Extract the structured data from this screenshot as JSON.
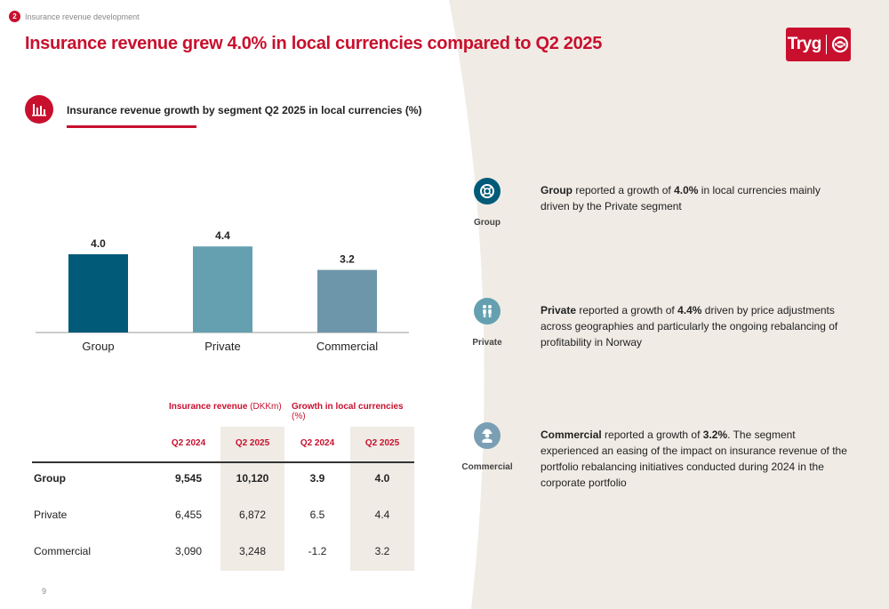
{
  "breadcrumb": {
    "number": "2",
    "text": "Insurance revenue development"
  },
  "title": "Insurance revenue grew 4.0% in local currencies compared to Q2 2025",
  "logo": {
    "text": "Tryg"
  },
  "chart_data": {
    "type": "bar",
    "title": "Insurance revenue growth by segment Q2 2025 in local currencies (%)",
    "categories": [
      "Group",
      "Private",
      "Commercial"
    ],
    "values": [
      4.0,
      4.4,
      3.2
    ],
    "value_labels": [
      "4.0",
      "4.4",
      "3.2"
    ],
    "colors": [
      "#005a78",
      "#64a0b0",
      "#6e96aa"
    ],
    "ylim": [
      0,
      6
    ],
    "xlabel": "",
    "ylabel": "",
    "grid": false
  },
  "table": {
    "group1": {
      "bold": "Insurance revenue",
      "light": " (DKKm)"
    },
    "group2": {
      "bold": "Growth in local currencies",
      "light": " (%)"
    },
    "columns": [
      "Q2 2024",
      "Q2 2025",
      "Q2 2024",
      "Q2 2025"
    ],
    "rows": [
      {
        "label": "Group",
        "values": [
          "9,545",
          "10,120",
          "3.9",
          "4.0"
        ]
      },
      {
        "label": "Private",
        "values": [
          "6,455",
          "6,872",
          "6.5",
          "4.4"
        ]
      },
      {
        "label": "Commercial",
        "values": [
          "3,090",
          "3,248",
          "-1.2",
          "3.2"
        ]
      }
    ]
  },
  "segments": [
    {
      "label": "Group",
      "icon": "lifebuoy-icon",
      "lead": "Group",
      "text1": " reported a growth of ",
      "figure": "4.0%",
      "text2": " in local currencies mainly driven by the Private segment"
    },
    {
      "label": "Private",
      "icon": "people-icon",
      "lead": "Private",
      "text1": " reported a growth of ",
      "figure": "4.4%",
      "text2": " driven by price adjustments across geographies and particularly the ongoing rebalancing of profitability in Norway"
    },
    {
      "label": "Commercial",
      "icon": "worker-icon",
      "lead": "Commercial",
      "text1": " reported a growth of ",
      "figure": "3.2%",
      "text2": ". The segment experienced an easing of the impact on insurance revenue of the portfolio rebalancing initiatives conducted during 2024 in the corporate portfolio"
    }
  ],
  "colors": {
    "accent": "#c8102e",
    "background": "#f0ebe5",
    "panel": "#ffffff",
    "icon_dark": "#005a78",
    "icon_mid": "#64a0b0",
    "icon_light": "#7a9fb4"
  },
  "page_number": "9"
}
